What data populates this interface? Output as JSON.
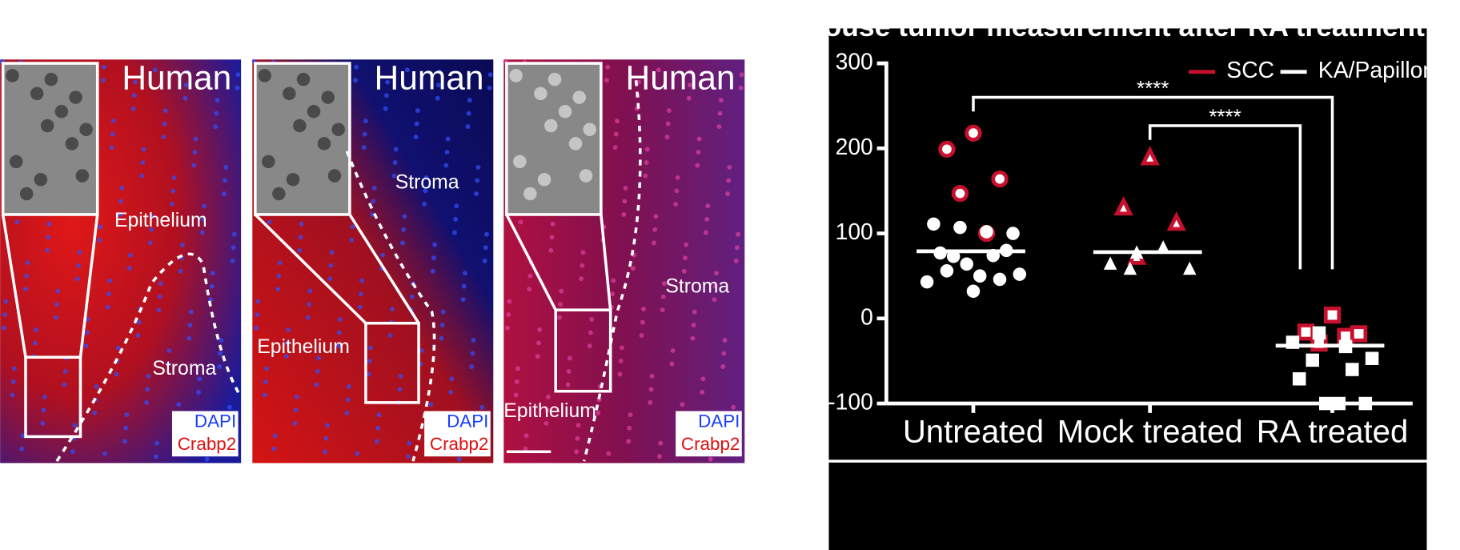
{
  "panels": [
    {
      "species": "Human",
      "upper": "Epithelium",
      "lower": "Stroma",
      "stain1": "DAPI",
      "stain2": "Crabp2"
    },
    {
      "species": "Human",
      "upper": "Stroma",
      "lower": "Epithelium",
      "stain1": "DAPI",
      "stain2": "Crabp2"
    },
    {
      "species": "Human",
      "upper": "Stroma",
      "lower": "Epithelium",
      "stain1": "DAPI",
      "stain2": "Crabp2"
    }
  ],
  "chart_data": {
    "type": "scatter",
    "title": "ouse tumor measurement after RA treatment",
    "categories": [
      "Untreated",
      "Mock treated",
      "RA treated"
    ],
    "markers": [
      "circle",
      "triangle",
      "square"
    ],
    "series": [
      {
        "name": "SCC",
        "color": "#c8102e",
        "values": [
          [
            218,
            199,
            164,
            147,
            100
          ],
          [
            189,
            130,
            112,
            72
          ],
          [
            4,
            -16,
            -18,
            -29,
            -21
          ]
        ]
      },
      {
        "name": "KA/Papilloma",
        "color": "#ffffff",
        "values": [
          [
            107,
            102,
            111,
            100,
            73,
            74,
            77,
            80,
            64,
            50,
            43,
            52,
            32,
            56,
            46
          ],
          [
            77,
            83,
            64,
            58,
            58
          ],
          [
            -17,
            -33,
            -28,
            -47,
            -49,
            -60,
            -71,
            -100,
            -100,
            -100
          ]
        ]
      }
    ],
    "medians": [
      79,
      78,
      -32
    ],
    "significance": [
      {
        "label": "****",
        "from": 0,
        "to": 2
      },
      {
        "label": "****",
        "from": 1,
        "to": 2
      }
    ],
    "ylim": [
      -100,
      300
    ],
    "yticks": [
      -100,
      0,
      100,
      200,
      300
    ]
  }
}
